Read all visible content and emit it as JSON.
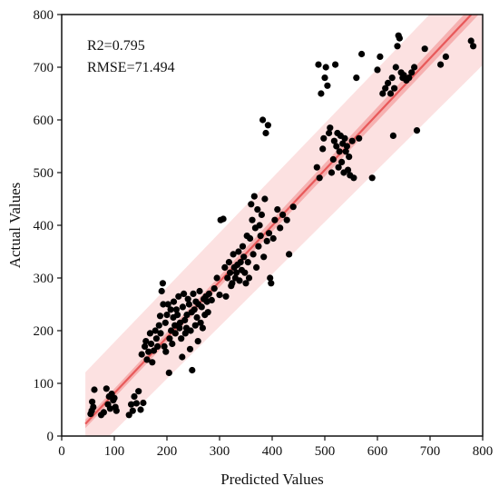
{
  "chart_data": {
    "type": "scatter",
    "xlabel": "Predicted Values",
    "ylabel": "Actual  Values",
    "xlim": [
      0,
      800
    ],
    "ylim": [
      0,
      800
    ],
    "xticks": [
      "0",
      "100",
      "200",
      "300",
      "400",
      "500",
      "600",
      "700",
      "800"
    ],
    "yticks": [
      "0",
      "100",
      "200",
      "300",
      "400",
      "500",
      "600",
      "700",
      "800"
    ],
    "annotations": [
      "R2=0.795",
      "RMSE=71.494"
    ],
    "grid": false,
    "fit_line": {
      "x": [
        45,
        800
      ],
      "y": [
        23,
        823
      ]
    },
    "prediction_band": {
      "x": [
        45,
        800
      ],
      "lower": [
        -45,
        704
      ],
      "upper": [
        121,
        905
      ]
    },
    "confidence_band": {
      "x": [
        45,
        800
      ],
      "lower": [
        15,
        808
      ],
      "upper": [
        31,
        838
      ]
    },
    "colors": {
      "points": "#000000",
      "fit_line": "#e8595a",
      "prediction_band": "#fbdcdc",
      "confidence_band": "#f4a5a5"
    },
    "points": [
      [
        55,
        42
      ],
      [
        57,
        48
      ],
      [
        58,
        65
      ],
      [
        60,
        55
      ],
      [
        62,
        88
      ],
      [
        75,
        40
      ],
      [
        80,
        45
      ],
      [
        85,
        90
      ],
      [
        88,
        60
      ],
      [
        90,
        75
      ],
      [
        92,
        52
      ],
      [
        95,
        80
      ],
      [
        98,
        68
      ],
      [
        100,
        72
      ],
      [
        102,
        55
      ],
      [
        104,
        48
      ],
      [
        128,
        40
      ],
      [
        132,
        60
      ],
      [
        135,
        48
      ],
      [
        138,
        75
      ],
      [
        142,
        62
      ],
      [
        146,
        85
      ],
      [
        150,
        50
      ],
      [
        155,
        63
      ],
      [
        152,
        155
      ],
      [
        158,
        170
      ],
      [
        160,
        180
      ],
      [
        162,
        145
      ],
      [
        165,
        160
      ],
      [
        168,
        195
      ],
      [
        170,
        175
      ],
      [
        172,
        140
      ],
      [
        175,
        162
      ],
      [
        178,
        200
      ],
      [
        180,
        185
      ],
      [
        182,
        170
      ],
      [
        185,
        210
      ],
      [
        187,
        228
      ],
      [
        188,
        195
      ],
      [
        190,
        275
      ],
      [
        192,
        290
      ],
      [
        193,
        250
      ],
      [
        195,
        170
      ],
      [
        197,
        215
      ],
      [
        198,
        160
      ],
      [
        200,
        230
      ],
      [
        202,
        250
      ],
      [
        204,
        120
      ],
      [
        205,
        185
      ],
      [
        207,
        240
      ],
      [
        208,
        200
      ],
      [
        210,
        175
      ],
      [
        212,
        225
      ],
      [
        213,
        255
      ],
      [
        215,
        210
      ],
      [
        216,
        195
      ],
      [
        218,
        240
      ],
      [
        220,
        230
      ],
      [
        222,
        265
      ],
      [
        224,
        205
      ],
      [
        225,
        215
      ],
      [
        227,
        185
      ],
      [
        229,
        150
      ],
      [
        230,
        245
      ],
      [
        232,
        270
      ],
      [
        234,
        220
      ],
      [
        235,
        195
      ],
      [
        237,
        205
      ],
      [
        238,
        230
      ],
      [
        240,
        260
      ],
      [
        242,
        250
      ],
      [
        244,
        165
      ],
      [
        245,
        200
      ],
      [
        247,
        235
      ],
      [
        248,
        125
      ],
      [
        250,
        270
      ],
      [
        252,
        240
      ],
      [
        254,
        210
      ],
      [
        255,
        255
      ],
      [
        257,
        225
      ],
      [
        259,
        180
      ],
      [
        260,
        250
      ],
      [
        262,
        275
      ],
      [
        264,
        215
      ],
      [
        266,
        245
      ],
      [
        268,
        205
      ],
      [
        270,
        260
      ],
      [
        272,
        230
      ],
      [
        274,
        265
      ],
      [
        276,
        255
      ],
      [
        278,
        235
      ],
      [
        280,
        270
      ],
      [
        285,
        258
      ],
      [
        290,
        280
      ],
      [
        295,
        300
      ],
      [
        300,
        268
      ],
      [
        302,
        410
      ],
      [
        307,
        412
      ],
      [
        310,
        320
      ],
      [
        312,
        265
      ],
      [
        315,
        300
      ],
      [
        318,
        330
      ],
      [
        320,
        310
      ],
      [
        322,
        285
      ],
      [
        324,
        290
      ],
      [
        326,
        345
      ],
      [
        328,
        320
      ],
      [
        330,
        300
      ],
      [
        332,
        310
      ],
      [
        334,
        325
      ],
      [
        336,
        350
      ],
      [
        338,
        295
      ],
      [
        340,
        330
      ],
      [
        342,
        315
      ],
      [
        344,
        360
      ],
      [
        346,
        340
      ],
      [
        348,
        310
      ],
      [
        350,
        290
      ],
      [
        352,
        380
      ],
      [
        354,
        330
      ],
      [
        356,
        300
      ],
      [
        358,
        375
      ],
      [
        360,
        440
      ],
      [
        362,
        410
      ],
      [
        364,
        345
      ],
      [
        366,
        455
      ],
      [
        368,
        395
      ],
      [
        370,
        320
      ],
      [
        372,
        430
      ],
      [
        374,
        360
      ],
      [
        376,
        400
      ],
      [
        378,
        380
      ],
      [
        380,
        420
      ],
      [
        382,
        600
      ],
      [
        384,
        340
      ],
      [
        386,
        450
      ],
      [
        388,
        575
      ],
      [
        390,
        370
      ],
      [
        392,
        590
      ],
      [
        394,
        385
      ],
      [
        396,
        300
      ],
      [
        398,
        290
      ],
      [
        402,
        375
      ],
      [
        405,
        410
      ],
      [
        410,
        430
      ],
      [
        415,
        395
      ],
      [
        420,
        420
      ],
      [
        428,
        410
      ],
      [
        432,
        345
      ],
      [
        440,
        435
      ],
      [
        485,
        510
      ],
      [
        488,
        705
      ],
      [
        490,
        490
      ],
      [
        493,
        650
      ],
      [
        496,
        545
      ],
      [
        498,
        565
      ],
      [
        500,
        680
      ],
      [
        502,
        700
      ],
      [
        505,
        665
      ],
      [
        508,
        575
      ],
      [
        510,
        585
      ],
      [
        513,
        500
      ],
      [
        516,
        525
      ],
      [
        518,
        560
      ],
      [
        520,
        705
      ],
      [
        522,
        550
      ],
      [
        524,
        575
      ],
      [
        526,
        510
      ],
      [
        528,
        540
      ],
      [
        530,
        570
      ],
      [
        532,
        520
      ],
      [
        534,
        555
      ],
      [
        536,
        500
      ],
      [
        538,
        565
      ],
      [
        540,
        540
      ],
      [
        542,
        550
      ],
      [
        544,
        505
      ],
      [
        546,
        530
      ],
      [
        548,
        495
      ],
      [
        552,
        560
      ],
      [
        555,
        490
      ],
      [
        560,
        680
      ],
      [
        565,
        565
      ],
      [
        570,
        725
      ],
      [
        590,
        490
      ],
      [
        600,
        695
      ],
      [
        605,
        720
      ],
      [
        610,
        650
      ],
      [
        615,
        660
      ],
      [
        620,
        670
      ],
      [
        625,
        650
      ],
      [
        628,
        680
      ],
      [
        630,
        570
      ],
      [
        632,
        660
      ],
      [
        635,
        700
      ],
      [
        638,
        740
      ],
      [
        640,
        760
      ],
      [
        642,
        755
      ],
      [
        645,
        690
      ],
      [
        648,
        680
      ],
      [
        650,
        685
      ],
      [
        655,
        675
      ],
      [
        660,
        680
      ],
      [
        665,
        690
      ],
      [
        670,
        700
      ],
      [
        675,
        580
      ],
      [
        690,
        735
      ],
      [
        720,
        705
      ],
      [
        730,
        720
      ],
      [
        778,
        750
      ],
      [
        782,
        740
      ]
    ]
  }
}
